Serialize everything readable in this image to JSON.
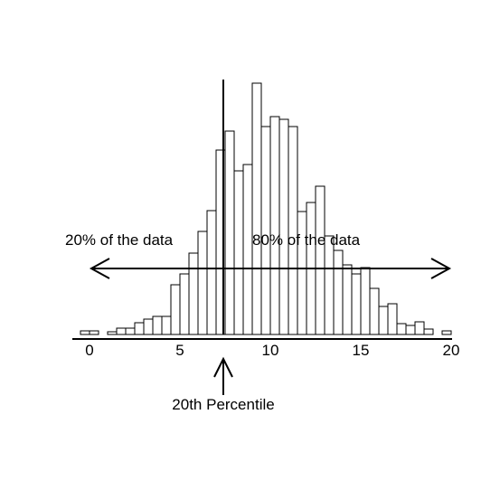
{
  "chart_data": {
    "type": "bar",
    "title": "",
    "xlabel": "",
    "ylabel": "",
    "xlim": [
      -0.5,
      20
    ],
    "ylim": [
      0,
      282
    ],
    "bin_width": 0.5,
    "bins": [
      {
        "x0": -0.5,
        "count": 4
      },
      {
        "x0": 0.0,
        "count": 4
      },
      {
        "x0": 1.0,
        "count": 3
      },
      {
        "x0": 1.5,
        "count": 7
      },
      {
        "x0": 2.0,
        "count": 7
      },
      {
        "x0": 2.5,
        "count": 13
      },
      {
        "x0": 3.0,
        "count": 17
      },
      {
        "x0": 3.5,
        "count": 20
      },
      {
        "x0": 4.0,
        "count": 20
      },
      {
        "x0": 4.5,
        "count": 55
      },
      {
        "x0": 5.0,
        "count": 67
      },
      {
        "x0": 5.5,
        "count": 90
      },
      {
        "x0": 6.0,
        "count": 114
      },
      {
        "x0": 6.5,
        "count": 137
      },
      {
        "x0": 7.0,
        "count": 204
      },
      {
        "x0": 7.5,
        "count": 225
      },
      {
        "x0": 8.0,
        "count": 181
      },
      {
        "x0": 8.5,
        "count": 188
      },
      {
        "x0": 9.0,
        "count": 278
      },
      {
        "x0": 9.5,
        "count": 230
      },
      {
        "x0": 10.0,
        "count": 241
      },
      {
        "x0": 10.5,
        "count": 238
      },
      {
        "x0": 11.0,
        "count": 230
      },
      {
        "x0": 11.5,
        "count": 136
      },
      {
        "x0": 12.0,
        "count": 146
      },
      {
        "x0": 12.5,
        "count": 164
      },
      {
        "x0": 13.0,
        "count": 109
      },
      {
        "x0": 13.5,
        "count": 93
      },
      {
        "x0": 14.0,
        "count": 77
      },
      {
        "x0": 14.5,
        "count": 67
      },
      {
        "x0": 15.0,
        "count": 74
      },
      {
        "x0": 15.5,
        "count": 51
      },
      {
        "x0": 16.0,
        "count": 31
      },
      {
        "x0": 16.5,
        "count": 34
      },
      {
        "x0": 17.0,
        "count": 12
      },
      {
        "x0": 17.5,
        "count": 10
      },
      {
        "x0": 18.0,
        "count": 14
      },
      {
        "x0": 18.5,
        "count": 6
      },
      {
        "x0": 19.5,
        "count": 4
      }
    ],
    "x_ticks": [
      0,
      5,
      10,
      15,
      20
    ],
    "percentile_x": 7.4,
    "annotations": {
      "left_label": "20% of the data",
      "right_label": "80% of the data",
      "percentile_label": "20th Percentile"
    },
    "grid": false,
    "legend": "none"
  }
}
